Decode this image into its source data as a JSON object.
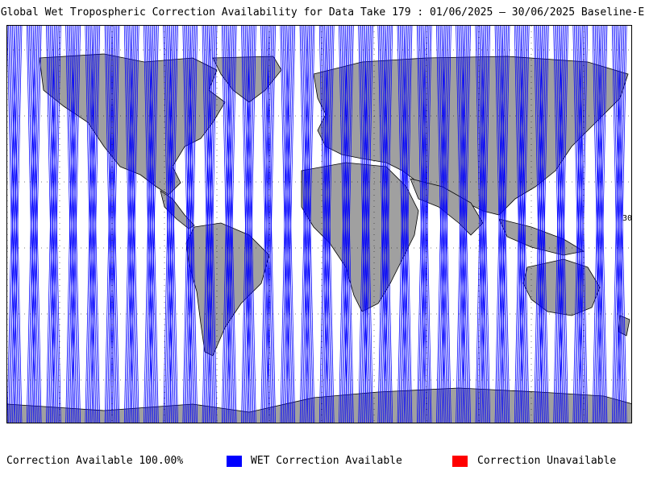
{
  "title": "Global Wet Tropospheric Correction Availability for Data Take 179 : 01/06/2025 – 30/06/2025 Baseline-E",
  "footer": {
    "availability_text": "Correction Available 100.00%",
    "legend": [
      {
        "label": "WET Correction Available",
        "color": "#0000ff",
        "icon": "blue-square"
      },
      {
        "label": "Correction Unavailable",
        "color": "#ff0000",
        "icon": "red-square"
      }
    ]
  },
  "map": {
    "edge_tick_label": "30",
    "colors": {
      "land": "#a0a0a0",
      "ocean": "#ffffff",
      "track": "#0000ff",
      "coastline": "#000000"
    }
  }
}
